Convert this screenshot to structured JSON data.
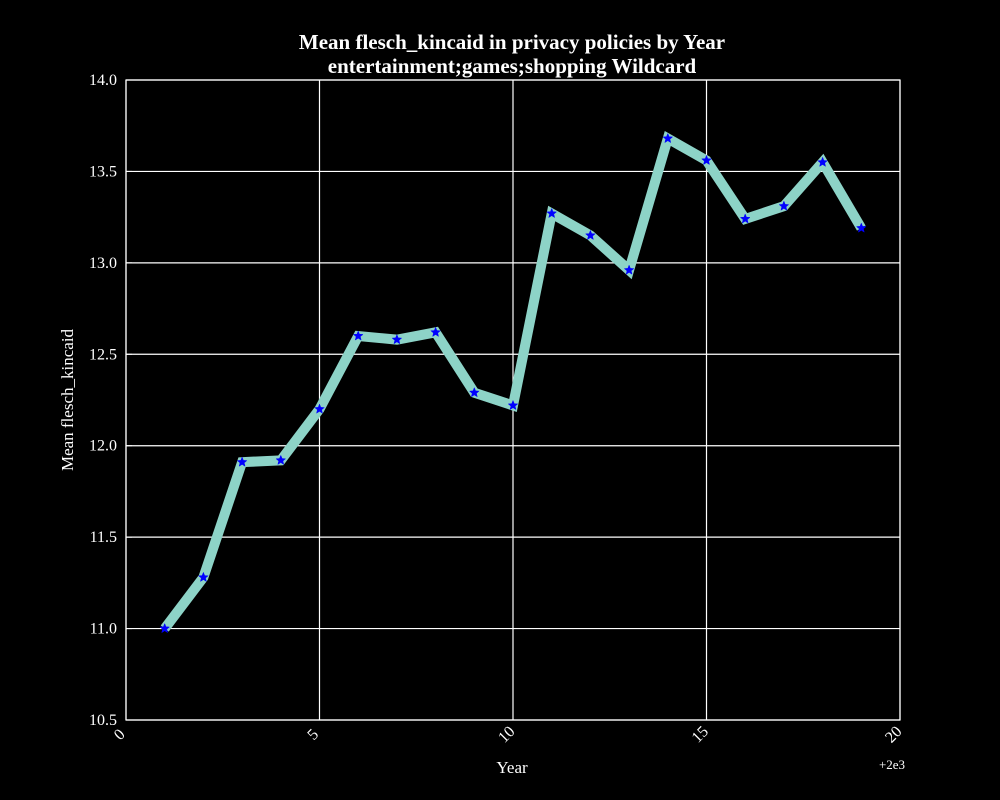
{
  "chart_data": {
    "type": "line",
    "title": "Mean flesch_kincaid in privacy policies by Year",
    "subtitle": "entertainment;games;shopping Wildcard",
    "xlabel": "Year",
    "ylabel": "Mean flesch_kincaid",
    "x_offset_label": "+2e3",
    "xlim": [
      0,
      20
    ],
    "ylim": [
      10.5,
      14.0
    ],
    "x_ticks": [
      0,
      5,
      10,
      15,
      20
    ],
    "x_tick_labels": [
      "0",
      "5",
      "10",
      "15",
      "20"
    ],
    "y_ticks": [
      10.5,
      11.0,
      11.5,
      12.0,
      12.5,
      13.0,
      13.5,
      14.0
    ],
    "y_tick_labels": [
      "10.5",
      "11.0",
      "11.5",
      "12.0",
      "12.5",
      "13.0",
      "13.5",
      "14.0"
    ],
    "grid": true,
    "series": [
      {
        "line_color": "#8dd3c7",
        "marker_color": "#0000ff",
        "marker": "star",
        "points": [
          {
            "x": 1,
            "y": 11.0
          },
          {
            "x": 2,
            "y": 11.28
          },
          {
            "x": 3,
            "y": 11.91
          },
          {
            "x": 4,
            "y": 11.92
          },
          {
            "x": 5,
            "y": 12.2
          },
          {
            "x": 6,
            "y": 12.6
          },
          {
            "x": 7,
            "y": 12.58
          },
          {
            "x": 8,
            "y": 12.62
          },
          {
            "x": 9,
            "y": 12.29
          },
          {
            "x": 10,
            "y": 12.22
          },
          {
            "x": 11,
            "y": 13.27
          },
          {
            "x": 12,
            "y": 13.15
          },
          {
            "x": 13,
            "y": 12.96
          },
          {
            "x": 14,
            "y": 13.68
          },
          {
            "x": 15,
            "y": 13.56
          },
          {
            "x": 16,
            "y": 13.24
          },
          {
            "x": 17,
            "y": 13.31
          },
          {
            "x": 18,
            "y": 13.55
          },
          {
            "x": 19,
            "y": 13.19
          }
        ]
      }
    ]
  },
  "colors": {
    "background": "#000000",
    "foreground": "#ffffff",
    "grid": "#ffffff"
  }
}
